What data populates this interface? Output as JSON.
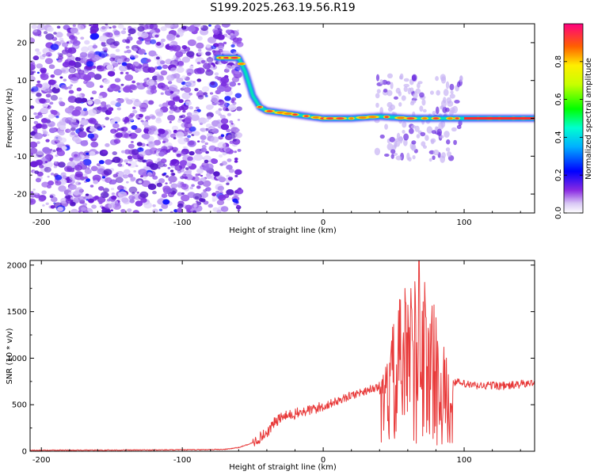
{
  "chart_data": [
    {
      "type": "heatmap",
      "title": "S199.2025.263.19.56.R19",
      "xlabel": "Height of straight line (km)",
      "ylabel": "Frequency (Hz)",
      "xlim": [
        -208,
        150
      ],
      "ylim": [
        -25,
        25
      ],
      "xticks": [
        -200,
        -100,
        0,
        100
      ],
      "xtick_labels": [
        "-200",
        "-100",
        "0",
        "100"
      ],
      "yticks": [
        20,
        10,
        0,
        -10,
        -20
      ],
      "ytick_labels": [
        "20",
        "10",
        "0",
        "-10",
        "-20"
      ],
      "noise_region_x": [
        -208,
        -59
      ],
      "signal_ridge": {
        "x": [
          -75,
          -65,
          -60,
          -55,
          -50,
          -45,
          -40,
          -30,
          -20,
          -10,
          0,
          20,
          40,
          60,
          80,
          100,
          150
        ],
        "freq": [
          16,
          16,
          16,
          12,
          6,
          3,
          2,
          1.5,
          1,
          0.5,
          0,
          0,
          0.5,
          0,
          0,
          0,
          0
        ]
      },
      "colorbar": {
        "label": "Normalized spectral amplitude",
        "range": [
          0,
          1
        ],
        "ticks": [
          0.0,
          0.2,
          0.4,
          0.6,
          0.8
        ],
        "tick_labels": [
          "0.0",
          "0.2",
          "0.4",
          "0.6",
          "0.8"
        ]
      }
    },
    {
      "type": "line",
      "xlabel": "Height of straight line (km)",
      "ylabel": "SNR (10 * v/v)",
      "xlim": [
        -208,
        150
      ],
      "ylim": [
        0,
        2050
      ],
      "xticks": [
        -200,
        -100,
        0,
        100
      ],
      "xtick_labels": [
        "-200",
        "-100",
        "0",
        "100"
      ],
      "yticks": [
        0,
        500,
        1000,
        1500,
        2000
      ],
      "ytick_labels": [
        "0",
        "500",
        "1000",
        "1500",
        "2000"
      ],
      "color": "#e83a3a",
      "series": [
        {
          "name": "SNR",
          "x": [
            -208,
            -150,
            -100,
            -70,
            -60,
            -50,
            -40,
            -35,
            -30,
            -20,
            -10,
            0,
            10,
            20,
            30,
            40,
            50,
            60,
            70,
            80,
            90,
            100,
            110,
            120,
            130,
            140,
            150
          ],
          "y": [
            10,
            12,
            15,
            20,
            40,
            90,
            200,
            300,
            360,
            400,
            440,
            480,
            540,
            600,
            650,
            700,
            750,
            800,
            800,
            780,
            760,
            720,
            700,
            710,
            700,
            720,
            730
          ]
        }
      ],
      "burst_region_x": [
        40,
        92
      ],
      "burst_max": 2050
    }
  ]
}
